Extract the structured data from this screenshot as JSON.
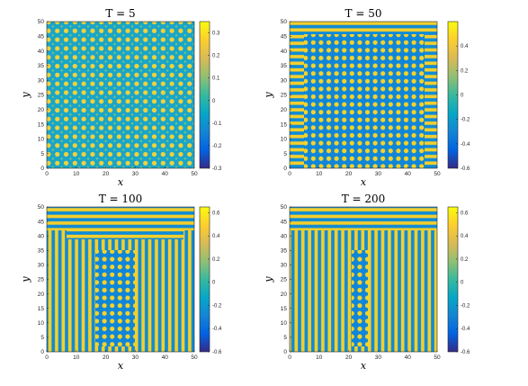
{
  "chart_data": [
    {
      "type": "heatmap",
      "title": "T = 5",
      "xlabel": "x",
      "ylabel": "y",
      "xlim": [
        0,
        50
      ],
      "ylim": [
        0,
        50
      ],
      "xticks": [
        "0",
        "10",
        "20",
        "30",
        "40",
        "50"
      ],
      "yticks": [
        "0",
        "5",
        "10",
        "15",
        "20",
        "25",
        "30",
        "35",
        "40",
        "45",
        "50"
      ],
      "colorbar": {
        "min": -0.3,
        "max": 0.35,
        "ticks": [
          "0.3",
          "0.2",
          "0.1",
          "0",
          "-0.1",
          "-0.2",
          "-0.3"
        ],
        "tick_values": [
          0.3,
          0.2,
          0.1,
          0,
          -0.1,
          -0.2,
          -0.3
        ]
      },
      "pattern": "hexagonal spots",
      "colormap": "parula"
    },
    {
      "type": "heatmap",
      "title": "T = 50",
      "xlabel": "x",
      "ylabel": "y",
      "xlim": [
        0,
        50
      ],
      "ylim": [
        0,
        50
      ],
      "xticks": [
        "0",
        "10",
        "20",
        "30",
        "40",
        "50"
      ],
      "yticks": [
        "0",
        "5",
        "10",
        "15",
        "20",
        "25",
        "30",
        "35",
        "40",
        "45",
        "50"
      ],
      "colorbar": {
        "min": -0.6,
        "max": 0.6,
        "ticks": [
          "0.4",
          "0.2",
          "0",
          "-0.2",
          "-0.4",
          "-0.6"
        ],
        "tick_values": [
          0.4,
          0.2,
          0,
          -0.2,
          -0.4,
          -0.6
        ]
      },
      "pattern": "spots in interior, stripes along boundary",
      "colormap": "parula"
    },
    {
      "type": "heatmap",
      "title": "T = 100",
      "xlabel": "x",
      "ylabel": "y",
      "xlim": [
        0,
        50
      ],
      "ylim": [
        0,
        50
      ],
      "xticks": [
        "0",
        "10",
        "20",
        "30",
        "40",
        "50"
      ],
      "yticks": [
        "0",
        "5",
        "10",
        "15",
        "20",
        "25",
        "30",
        "35",
        "40",
        "45",
        "50"
      ],
      "colorbar": {
        "min": -0.6,
        "max": 0.65,
        "ticks": [
          "0.6",
          "0.4",
          "0.2",
          "0",
          "-0.2",
          "-0.4",
          "-0.6"
        ],
        "tick_values": [
          0.6,
          0.4,
          0.2,
          0,
          -0.2,
          -0.4,
          -0.6
        ]
      },
      "pattern": "vertical stripes with central column of spots",
      "colormap": "parula"
    },
    {
      "type": "heatmap",
      "title": "T = 200",
      "xlabel": "x",
      "ylabel": "y",
      "xlim": [
        0,
        50
      ],
      "ylim": [
        0,
        50
      ],
      "xticks": [
        "0",
        "10",
        "20",
        "30",
        "40",
        "50"
      ],
      "yticks": [
        "0",
        "5",
        "10",
        "15",
        "20",
        "25",
        "30",
        "35",
        "40",
        "45",
        "50"
      ],
      "colorbar": {
        "min": -0.6,
        "max": 0.65,
        "ticks": [
          "0.6",
          "0.4",
          "0.2",
          "0",
          "-0.2",
          "-0.4",
          "-0.6"
        ],
        "tick_values": [
          0.6,
          0.4,
          0.2,
          0,
          -0.2,
          -0.4,
          -0.6
        ]
      },
      "pattern": "vertical stripes with narrow central column of spots",
      "colormap": "parula"
    }
  ]
}
